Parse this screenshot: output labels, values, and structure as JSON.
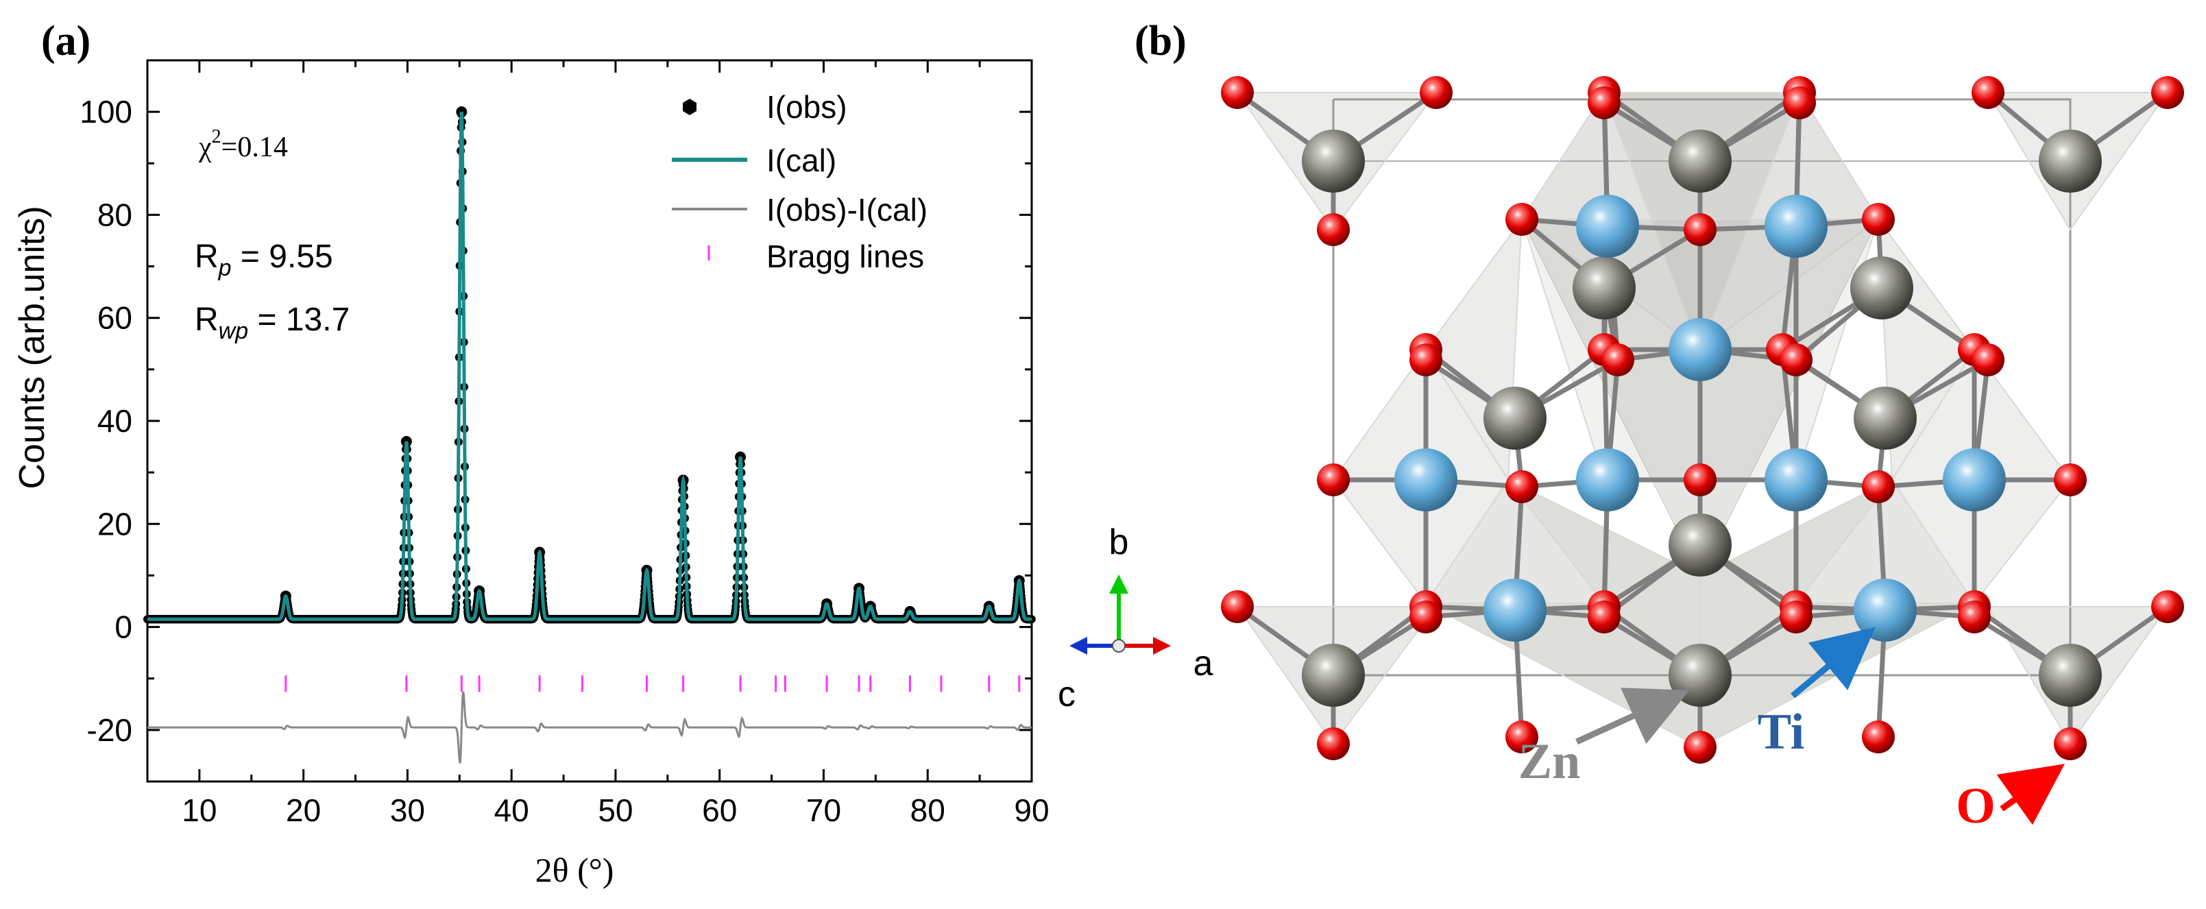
{
  "panel_a": {
    "label": "(a)",
    "stats": {
      "chi2_symbol": "χ",
      "chi2_exp": "2",
      "chi2_value": "=0.14",
      "rp_main": "R",
      "rp_sub": "p",
      "rp_value": " = 9.55",
      "rwp_main": "R",
      "rwp_sub": "wp",
      "rwp_value": " = 13.7"
    },
    "legend": {
      "obs": "I(obs)",
      "cal": "I(cal)",
      "diff": "I(obs)-I(cal)",
      "bragg": "Bragg lines"
    }
  },
  "panel_b": {
    "label": "(b)",
    "axes": {
      "b": "b",
      "a": "a",
      "c": "c"
    },
    "atoms": {
      "zn": "Zn",
      "ti": "Ti",
      "o": "O"
    }
  },
  "colors": {
    "obs": "#000000",
    "cal": "#1a8a8a",
    "diff": "#888888",
    "bragg": "#ff33ff",
    "zn": "#7a7a72",
    "ti": "#5ca8d8",
    "o": "#e00000",
    "polyhedra": "#9a9a92"
  },
  "chart_data": {
    "type": "line",
    "xlabel": "2θ (°)",
    "ylabel": "Counts (arb.units)",
    "xlim": [
      5,
      90
    ],
    "ylim": [
      -30,
      110
    ],
    "xticks": [
      10,
      20,
      30,
      40,
      50,
      60,
      70,
      80,
      90
    ],
    "yticks": [
      -20,
      0,
      20,
      40,
      60,
      80,
      100
    ],
    "baseline": 1.5,
    "peaks": [
      {
        "x": 18.3,
        "y": 6
      },
      {
        "x": 29.9,
        "y": 36
      },
      {
        "x": 35.2,
        "y": 100
      },
      {
        "x": 36.9,
        "y": 7
      },
      {
        "x": 42.7,
        "y": 14.5
      },
      {
        "x": 53.0,
        "y": 11
      },
      {
        "x": 56.5,
        "y": 28.5
      },
      {
        "x": 62.0,
        "y": 33
      },
      {
        "x": 70.3,
        "y": 4.5
      },
      {
        "x": 73.4,
        "y": 7.5
      },
      {
        "x": 74.5,
        "y": 4
      },
      {
        "x": 78.3,
        "y": 3
      },
      {
        "x": 85.9,
        "y": 4
      },
      {
        "x": 88.8,
        "y": 9
      }
    ],
    "bragg_positions": [
      18.3,
      29.9,
      35.2,
      36.9,
      42.7,
      46.8,
      53.0,
      56.5,
      62.0,
      65.4,
      66.3,
      70.3,
      73.4,
      74.5,
      78.3,
      81.3,
      85.9,
      88.8
    ],
    "bragg_y": -11,
    "diff_offset": -19.5,
    "legend_position": "top-right"
  }
}
